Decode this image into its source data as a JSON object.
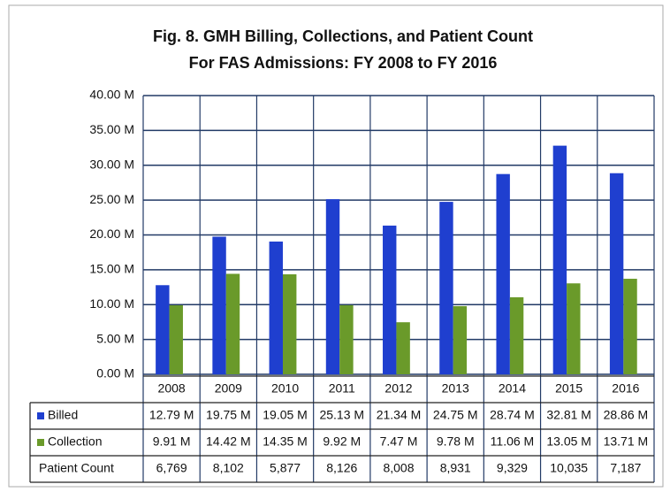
{
  "chart_data": {
    "type": "bar",
    "title": "Fig. 8.  GMH Billing, Collections, and Patient Count",
    "subtitle": "For FAS Admissions:  FY 2008 to FY 2016",
    "categories": [
      "2008",
      "2009",
      "2010",
      "2011",
      "2012",
      "2013",
      "2014",
      "2015",
      "2016"
    ],
    "series": [
      {
        "name": "Billed",
        "color": "#1f3fcf",
        "values": [
          12.79,
          19.75,
          19.05,
          25.13,
          21.34,
          24.75,
          28.74,
          32.81,
          28.86
        ],
        "value_labels": [
          "12.79 M",
          "19.75 M",
          "19.05 M",
          "25.13 M",
          "21.34 M",
          "24.75 M",
          "28.74 M",
          "32.81 M",
          "28.86 M"
        ]
      },
      {
        "name": "Collection",
        "color": "#6a9a2a",
        "values": [
          9.91,
          14.42,
          14.35,
          9.92,
          7.47,
          9.78,
          11.06,
          13.05,
          13.71
        ],
        "value_labels": [
          "9.91 M",
          "14.42 M",
          "14.35 M",
          "9.92 M",
          "7.47 M",
          "9.78 M",
          "11.06 M",
          "13.05 M",
          "13.71 M"
        ]
      }
    ],
    "patient_count": {
      "name": "Patient Count",
      "values": [
        6769,
        8102,
        5877,
        8126,
        8008,
        8931,
        9329,
        10035,
        7187
      ],
      "value_labels": [
        "6,769",
        "8,102",
        "5,877",
        "8,126",
        "8,008",
        "8,931",
        "9,329",
        "10,035",
        "7,187"
      ]
    },
    "ylim": [
      0,
      40
    ],
    "yticks": [
      {
        "value": 0,
        "label": "0.00 M"
      },
      {
        "value": 5,
        "label": "5.00 M"
      },
      {
        "value": 10,
        "label": "10.00 M"
      },
      {
        "value": 15,
        "label": "15.00 M"
      },
      {
        "value": 20,
        "label": "20.00 M"
      },
      {
        "value": 25,
        "label": "25.00 M"
      },
      {
        "value": 30,
        "label": "30.00 M"
      },
      {
        "value": 35,
        "label": "35.00 M"
      },
      {
        "value": 40,
        "label": "40.00 M"
      }
    ],
    "grid": true
  }
}
